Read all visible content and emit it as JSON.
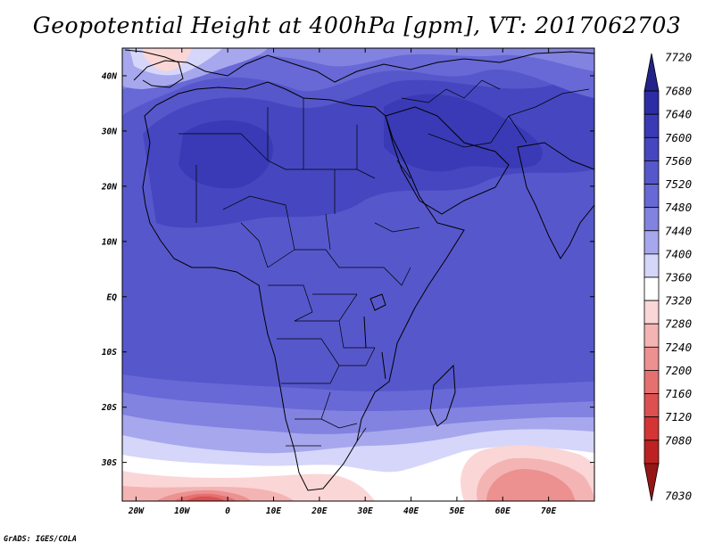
{
  "title": "Geopotential Height at 400hPa [gpm], VT: 2017062703",
  "credit": "GrADS: IGES/COLA",
  "map": {
    "lon_labels": [
      "20W",
      "10W",
      "0",
      "10E",
      "20E",
      "30E",
      "40E",
      "50E",
      "60E",
      "70E"
    ],
    "lat_labels": [
      "40N",
      "30N",
      "20N",
      "10N",
      "EQ",
      "10S",
      "20S",
      "30S"
    ]
  },
  "colorbar": {
    "levels": [
      "7720",
      "7680",
      "7640",
      "7600",
      "7560",
      "7520",
      "7480",
      "7440",
      "7400",
      "7360",
      "7320",
      "7280",
      "7240",
      "7200",
      "7160",
      "7120",
      "7080",
      "7030"
    ],
    "colors": [
      "#222288",
      "#2c2ca4",
      "#3a3ab6",
      "#4646c0",
      "#5757cc",
      "#6868d6",
      "#8282e0",
      "#a7a7ee",
      "#d6d6fa",
      "#ffffff",
      "#fbd6d6",
      "#f4b4b4",
      "#ec9090",
      "#e47070",
      "#dc5050",
      "#d43434",
      "#bc2222",
      "#961616"
    ]
  },
  "chart_data": {
    "type": "heatmap",
    "title": "Geopotential Height at 400hPa [gpm], VT: 2017062703",
    "variable": "Geopotential Height",
    "level": "400hPa",
    "units": "gpm",
    "valid_time": "2017062703",
    "lon_range": [
      -23,
      80
    ],
    "lat_range": [
      -37,
      45
    ],
    "contour_levels": [
      7030,
      7080,
      7120,
      7160,
      7200,
      7240,
      7280,
      7320,
      7360,
      7400,
      7440,
      7480,
      7520,
      7560,
      7600,
      7640,
      7680,
      7720
    ]
  }
}
